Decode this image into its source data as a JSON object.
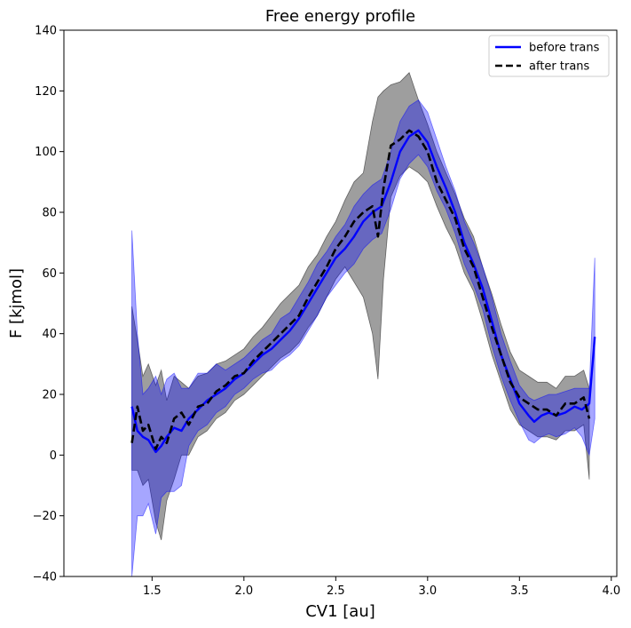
{
  "chart_data": {
    "type": "line",
    "title": "Free energy profile",
    "xlabel": "CV1 [au]",
    "ylabel": "F [kjmol]",
    "xlim": [
      1.02,
      4.03
    ],
    "ylim": [
      -40,
      140
    ],
    "xticks": [
      1.5,
      2.0,
      2.5,
      3.0,
      3.5,
      4.0
    ],
    "xtick_labels": [
      "1.5",
      "2.0",
      "2.5",
      "3.0",
      "3.5",
      "4.0"
    ],
    "yticks": [
      -40,
      -20,
      0,
      20,
      40,
      60,
      80,
      100,
      120,
      140
    ],
    "ytick_labels": [
      "−40",
      "−20",
      "0",
      "20",
      "40",
      "60",
      "80",
      "100",
      "120",
      "140"
    ],
    "grid": false,
    "legend_position": "top-right",
    "series": [
      {
        "name": "before trans",
        "color": "#0000ff",
        "band_color": "#0000ff",
        "line_style": "solid",
        "x": [
          1.39,
          1.42,
          1.45,
          1.48,
          1.52,
          1.55,
          1.58,
          1.62,
          1.66,
          1.7,
          1.75,
          1.8,
          1.85,
          1.9,
          1.95,
          2.0,
          2.05,
          2.1,
          2.15,
          2.2,
          2.25,
          2.3,
          2.35,
          2.4,
          2.45,
          2.5,
          2.55,
          2.6,
          2.65,
          2.7,
          2.75,
          2.8,
          2.85,
          2.9,
          2.95,
          3.0,
          3.05,
          3.1,
          3.15,
          3.2,
          3.25,
          3.3,
          3.35,
          3.4,
          3.45,
          3.5,
          3.55,
          3.58,
          3.62,
          3.66,
          3.7,
          3.75,
          3.8,
          3.84,
          3.88,
          3.91
        ],
        "y": [
          16,
          8,
          6,
          5,
          1,
          3,
          6,
          9,
          8,
          12,
          15,
          18,
          20,
          22,
          25,
          27,
          30,
          33,
          35,
          38,
          41,
          45,
          50,
          55,
          60,
          65,
          68,
          72,
          77,
          80,
          82,
          90,
          100,
          105,
          107,
          103,
          95,
          88,
          80,
          70,
          63,
          55,
          44,
          33,
          25,
          17,
          13,
          11,
          13,
          14,
          13,
          14,
          16,
          15,
          17,
          39
        ],
        "upper": [
          74,
          40,
          20,
          22,
          26,
          20,
          25,
          27,
          22,
          22,
          27,
          27,
          30,
          28,
          30,
          32,
          35,
          38,
          40,
          45,
          47,
          52,
          57,
          63,
          67,
          72,
          76,
          82,
          86,
          89,
          91,
          100,
          110,
          115,
          117,
          113,
          104,
          95,
          87,
          77,
          70,
          62,
          52,
          40,
          31,
          23,
          19,
          18,
          19,
          20,
          20,
          21,
          22,
          22,
          22,
          65
        ],
        "lower": [
          -40,
          -20,
          -20,
          -16,
          -26,
          -14,
          -12,
          -12,
          -10,
          3,
          8,
          10,
          14,
          16,
          20,
          22,
          25,
          27,
          28,
          31,
          33,
          36,
          41,
          46,
          52,
          56,
          60,
          63,
          68,
          71,
          73,
          81,
          91,
          96,
          99,
          95,
          87,
          81,
          73,
          63,
          56,
          48,
          36,
          26,
          18,
          11,
          5,
          4,
          6,
          7,
          6,
          7,
          9,
          6,
          0,
          12
        ]
      },
      {
        "name": "after trans",
        "color": "#000000",
        "band_color": "#000000",
        "line_style": "dashed",
        "x": [
          1.39,
          1.42,
          1.45,
          1.48,
          1.52,
          1.55,
          1.58,
          1.62,
          1.66,
          1.7,
          1.75,
          1.8,
          1.85,
          1.9,
          1.95,
          2.0,
          2.05,
          2.1,
          2.15,
          2.2,
          2.25,
          2.3,
          2.35,
          2.4,
          2.45,
          2.5,
          2.55,
          2.6,
          2.65,
          2.7,
          2.73,
          2.76,
          2.8,
          2.85,
          2.9,
          2.95,
          3.0,
          3.05,
          3.1,
          3.15,
          3.2,
          3.25,
          3.3,
          3.35,
          3.4,
          3.45,
          3.5,
          3.55,
          3.6,
          3.65,
          3.7,
          3.75,
          3.8,
          3.85,
          3.88
        ],
        "y": [
          4,
          16,
          8,
          10,
          2,
          6,
          4,
          12,
          14,
          10,
          16,
          17,
          21,
          23,
          26,
          27,
          31,
          34,
          37,
          40,
          43,
          46,
          52,
          57,
          62,
          68,
          72,
          77,
          80,
          82,
          72,
          88,
          102,
          104,
          107,
          105,
          100,
          90,
          84,
          78,
          68,
          62,
          52,
          42,
          33,
          24,
          19,
          17,
          15,
          15,
          13,
          17,
          17,
          19,
          12
        ],
        "upper": [
          49,
          38,
          26,
          30,
          23,
          28,
          18,
          26,
          24,
          22,
          26,
          27,
          30,
          31,
          33,
          35,
          39,
          42,
          46,
          50,
          53,
          56,
          62,
          66,
          72,
          77,
          84,
          90,
          93,
          110,
          118,
          120,
          122,
          123,
          126,
          117,
          109,
          100,
          93,
          86,
          78,
          72,
          62,
          53,
          43,
          34,
          28,
          26,
          24,
          24,
          22,
          26,
          26,
          28,
          22
        ],
        "lower": [
          -5,
          -5,
          -10,
          -8,
          -22,
          -28,
          -15,
          -8,
          0,
          0,
          6,
          8,
          12,
          14,
          18,
          20,
          23,
          26,
          29,
          32,
          34,
          37,
          42,
          46,
          52,
          58,
          62,
          57,
          52,
          40,
          25,
          58,
          85,
          92,
          95,
          93,
          90,
          82,
          75,
          69,
          60,
          54,
          44,
          33,
          24,
          15,
          10,
          8,
          6,
          6,
          5,
          8,
          8,
          10,
          -8
        ]
      }
    ]
  }
}
